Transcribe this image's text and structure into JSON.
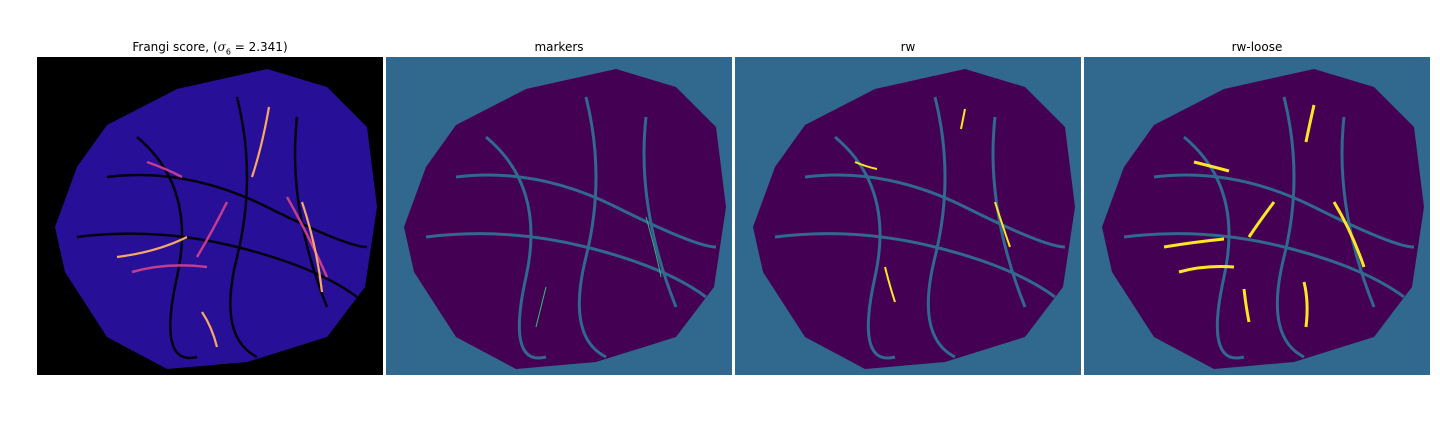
{
  "figure": {
    "panels": [
      {
        "id": "frangi",
        "title_prefix": "Frangi score, (",
        "title_symbol": "σ",
        "title_subscript": "6",
        "title_suffix": " = 2.341)",
        "colors": {
          "background": "#000000",
          "base": "#2a10a0",
          "bright": "#f7a866",
          "mid": "#c43c8c"
        }
      },
      {
        "id": "markers",
        "title": "markers",
        "colors": {
          "background": "#31688e",
          "fill": "#440154",
          "highlight": "#35b779"
        }
      },
      {
        "id": "rw",
        "title": "rw",
        "colors": {
          "background": "#31688e",
          "fill": "#440154",
          "highlight": "#fde725"
        }
      },
      {
        "id": "rw-loose",
        "title": "rw-loose",
        "colors": {
          "background": "#31688e",
          "fill": "#440154",
          "highlight": "#fde725"
        }
      }
    ]
  }
}
